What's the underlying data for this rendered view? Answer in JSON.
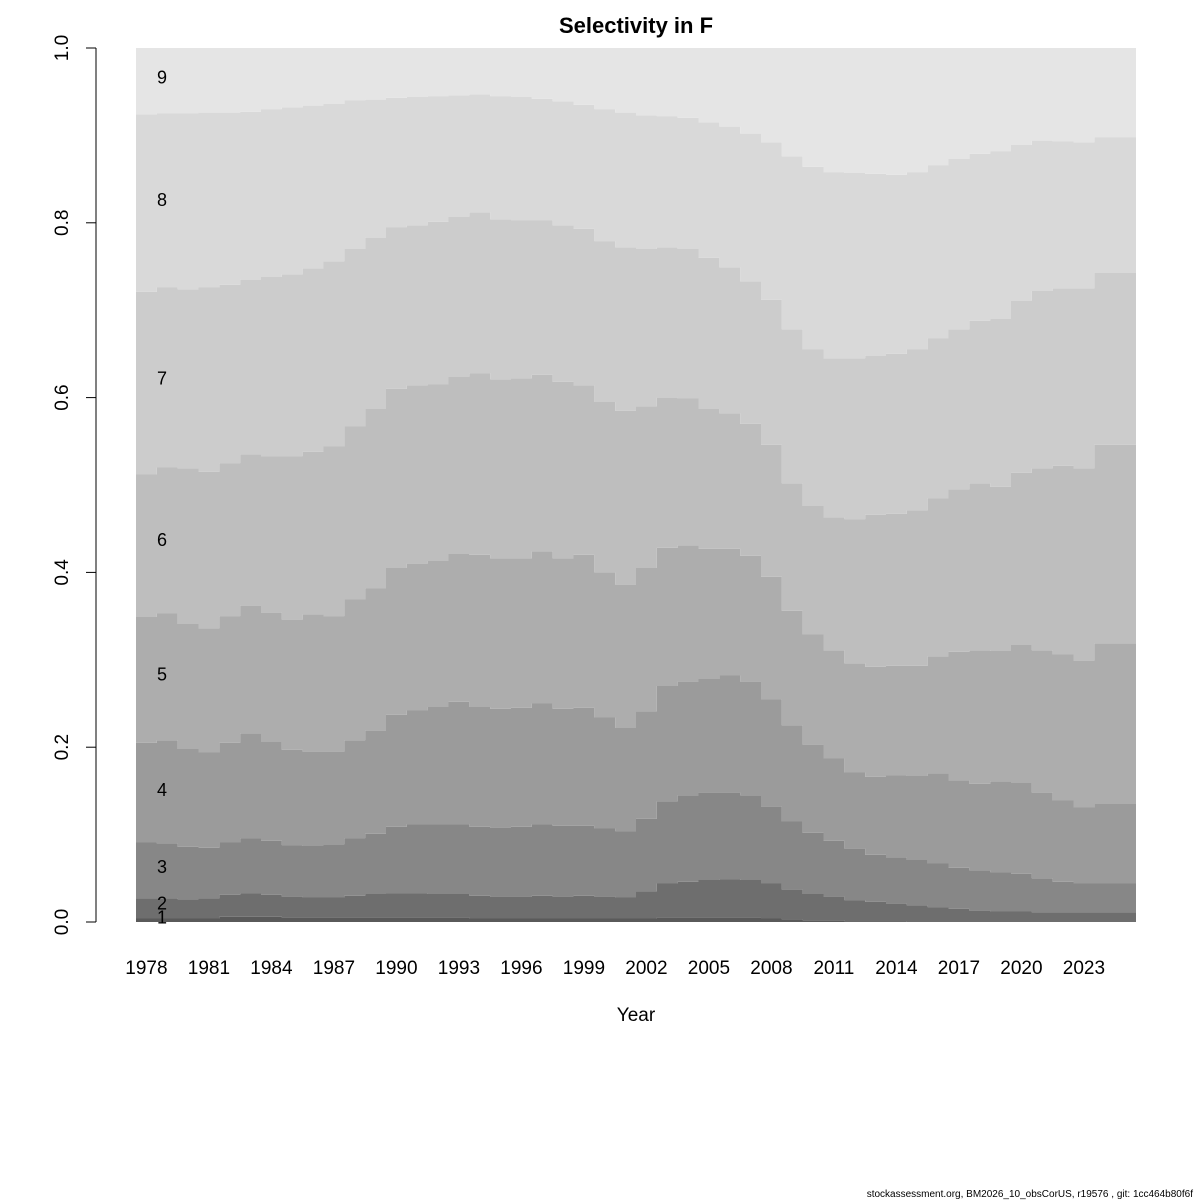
{
  "chart_data": {
    "type": "area",
    "title": "Selectivity in F",
    "xlabel": "Year",
    "ylabel": "",
    "ylim": [
      0,
      1
    ],
    "xlim": [
      1977.5,
      2025.5
    ],
    "yticks": [
      "0.0",
      "0.2",
      "0.4",
      "0.6",
      "0.8",
      "1.0"
    ],
    "xticks": [
      "1978",
      "1981",
      "1984",
      "1987",
      "1990",
      "1993",
      "1996",
      "1999",
      "2002",
      "2005",
      "2008",
      "2011",
      "2014",
      "2017",
      "2020",
      "2023"
    ],
    "x": [
      1978,
      1979,
      1980,
      1981,
      1982,
      1983,
      1984,
      1985,
      1986,
      1987,
      1988,
      1989,
      1990,
      1991,
      1992,
      1993,
      1994,
      1995,
      1996,
      1997,
      1998,
      1999,
      2000,
      2001,
      2002,
      2003,
      2004,
      2005,
      2006,
      2007,
      2008,
      2009,
      2010,
      2011,
      2012,
      2013,
      2014,
      2015,
      2016,
      2017,
      2018,
      2019,
      2020,
      2021,
      2022,
      2023,
      2024,
      2025
    ],
    "cumulative_boundaries": [
      {
        "name": "1",
        "values": [
          0.004,
          0.004,
          0.004,
          0.004,
          0.006,
          0.006,
          0.006,
          0.005,
          0.005,
          0.005,
          0.005,
          0.005,
          0.005,
          0.005,
          0.005,
          0.005,
          0.004,
          0.004,
          0.004,
          0.004,
          0.004,
          0.004,
          0.004,
          0.004,
          0.004,
          0.005,
          0.005,
          0.005,
          0.005,
          0.005,
          0.004,
          0.003,
          0.002,
          0.002,
          0.001,
          0.001,
          0.001,
          0.0,
          0.0,
          0.0,
          0.0,
          0.0,
          0.0,
          0.0,
          0.0,
          0.0,
          0.0,
          0.0
        ]
      },
      {
        "name": "2",
        "values": [
          0.027,
          0.027,
          0.026,
          0.027,
          0.031,
          0.033,
          0.031,
          0.029,
          0.028,
          0.028,
          0.03,
          0.032,
          0.033,
          0.033,
          0.032,
          0.032,
          0.03,
          0.029,
          0.029,
          0.03,
          0.029,
          0.03,
          0.029,
          0.028,
          0.035,
          0.044,
          0.046,
          0.048,
          0.049,
          0.048,
          0.044,
          0.037,
          0.032,
          0.029,
          0.025,
          0.023,
          0.021,
          0.019,
          0.017,
          0.015,
          0.013,
          0.012,
          0.012,
          0.011,
          0.011,
          0.011,
          0.011,
          0.011
        ]
      },
      {
        "name": "3",
        "values": [
          0.091,
          0.09,
          0.086,
          0.085,
          0.091,
          0.096,
          0.093,
          0.088,
          0.087,
          0.089,
          0.096,
          0.101,
          0.109,
          0.112,
          0.112,
          0.112,
          0.109,
          0.108,
          0.109,
          0.112,
          0.11,
          0.11,
          0.107,
          0.104,
          0.118,
          0.138,
          0.145,
          0.148,
          0.148,
          0.145,
          0.132,
          0.115,
          0.102,
          0.093,
          0.084,
          0.077,
          0.074,
          0.071,
          0.067,
          0.062,
          0.059,
          0.057,
          0.055,
          0.05,
          0.046,
          0.044,
          0.044,
          0.044
        ]
      },
      {
        "name": "4",
        "values": [
          0.205,
          0.208,
          0.198,
          0.194,
          0.205,
          0.216,
          0.206,
          0.197,
          0.195,
          0.195,
          0.208,
          0.219,
          0.237,
          0.242,
          0.246,
          0.252,
          0.246,
          0.244,
          0.245,
          0.25,
          0.244,
          0.245,
          0.234,
          0.222,
          0.241,
          0.27,
          0.275,
          0.278,
          0.282,
          0.275,
          0.255,
          0.225,
          0.203,
          0.187,
          0.171,
          0.166,
          0.168,
          0.167,
          0.17,
          0.162,
          0.158,
          0.161,
          0.159,
          0.148,
          0.139,
          0.131,
          0.135,
          0.135
        ]
      },
      {
        "name": "5",
        "values": [
          0.349,
          0.353,
          0.341,
          0.336,
          0.35,
          0.362,
          0.354,
          0.346,
          0.352,
          0.35,
          0.369,
          0.382,
          0.405,
          0.41,
          0.413,
          0.421,
          0.42,
          0.416,
          0.416,
          0.424,
          0.416,
          0.42,
          0.4,
          0.386,
          0.405,
          0.428,
          0.431,
          0.427,
          0.427,
          0.419,
          0.395,
          0.356,
          0.329,
          0.311,
          0.296,
          0.292,
          0.293,
          0.293,
          0.304,
          0.309,
          0.311,
          0.31,
          0.317,
          0.311,
          0.306,
          0.299,
          0.319,
          0.319
        ]
      },
      {
        "name": "6",
        "values": [
          0.512,
          0.52,
          0.519,
          0.515,
          0.525,
          0.535,
          0.533,
          0.533,
          0.538,
          0.544,
          0.567,
          0.587,
          0.61,
          0.614,
          0.615,
          0.624,
          0.628,
          0.621,
          0.622,
          0.626,
          0.618,
          0.614,
          0.595,
          0.585,
          0.59,
          0.6,
          0.599,
          0.587,
          0.582,
          0.57,
          0.546,
          0.502,
          0.476,
          0.463,
          0.461,
          0.466,
          0.467,
          0.471,
          0.485,
          0.495,
          0.502,
          0.498,
          0.514,
          0.519,
          0.522,
          0.519,
          0.546,
          0.546
        ]
      },
      {
        "name": "7",
        "values": [
          0.721,
          0.726,
          0.724,
          0.726,
          0.729,
          0.735,
          0.738,
          0.741,
          0.748,
          0.756,
          0.77,
          0.783,
          0.795,
          0.797,
          0.801,
          0.807,
          0.812,
          0.804,
          0.803,
          0.803,
          0.797,
          0.793,
          0.779,
          0.772,
          0.77,
          0.772,
          0.77,
          0.76,
          0.749,
          0.733,
          0.712,
          0.678,
          0.655,
          0.645,
          0.645,
          0.648,
          0.65,
          0.655,
          0.668,
          0.678,
          0.688,
          0.69,
          0.711,
          0.722,
          0.725,
          0.725,
          0.743,
          0.743
        ]
      },
      {
        "name": "8",
        "values": [
          0.924,
          0.925,
          0.925,
          0.926,
          0.926,
          0.927,
          0.93,
          0.932,
          0.934,
          0.936,
          0.94,
          0.941,
          0.943,
          0.944,
          0.945,
          0.946,
          0.947,
          0.945,
          0.944,
          0.942,
          0.939,
          0.935,
          0.93,
          0.926,
          0.923,
          0.922,
          0.92,
          0.915,
          0.91,
          0.902,
          0.892,
          0.876,
          0.864,
          0.858,
          0.857,
          0.856,
          0.855,
          0.858,
          0.866,
          0.873,
          0.879,
          0.882,
          0.889,
          0.894,
          0.893,
          0.892,
          0.898,
          0.898
        ]
      },
      {
        "name": "9",
        "values": [
          1,
          1,
          1,
          1,
          1,
          1,
          1,
          1,
          1,
          1,
          1,
          1,
          1,
          1,
          1,
          1,
          1,
          1,
          1,
          1,
          1,
          1,
          1,
          1,
          1,
          1,
          1,
          1,
          1,
          1,
          1,
          1,
          1,
          1,
          1,
          1,
          1,
          1,
          1,
          1,
          1,
          1,
          1,
          1,
          1,
          1,
          1,
          1
        ]
      }
    ],
    "band_colors": [
      "#5a5a5a",
      "#6e6e6e",
      "#878787",
      "#9b9b9b",
      "#adadad",
      "#bebebe",
      "#cccccc",
      "#d9d9d9",
      "#e5e5e5"
    ],
    "age_labels": [
      {
        "text": "1",
        "y": 0.005
      },
      {
        "text": "2",
        "y": 0.021
      },
      {
        "text": "3",
        "y": 0.063
      },
      {
        "text": "4",
        "y": 0.151
      },
      {
        "text": "5",
        "y": 0.283
      },
      {
        "text": "6",
        "y": 0.437
      },
      {
        "text": "7",
        "y": 0.622
      },
      {
        "text": "8",
        "y": 0.826
      },
      {
        "text": "9",
        "y": 0.966
      }
    ],
    "grid": false,
    "legend": "none"
  },
  "footer": "stockassessment.org, BM2026_10_obsCorUS, r19576 , git: 1cc464b80f6f"
}
